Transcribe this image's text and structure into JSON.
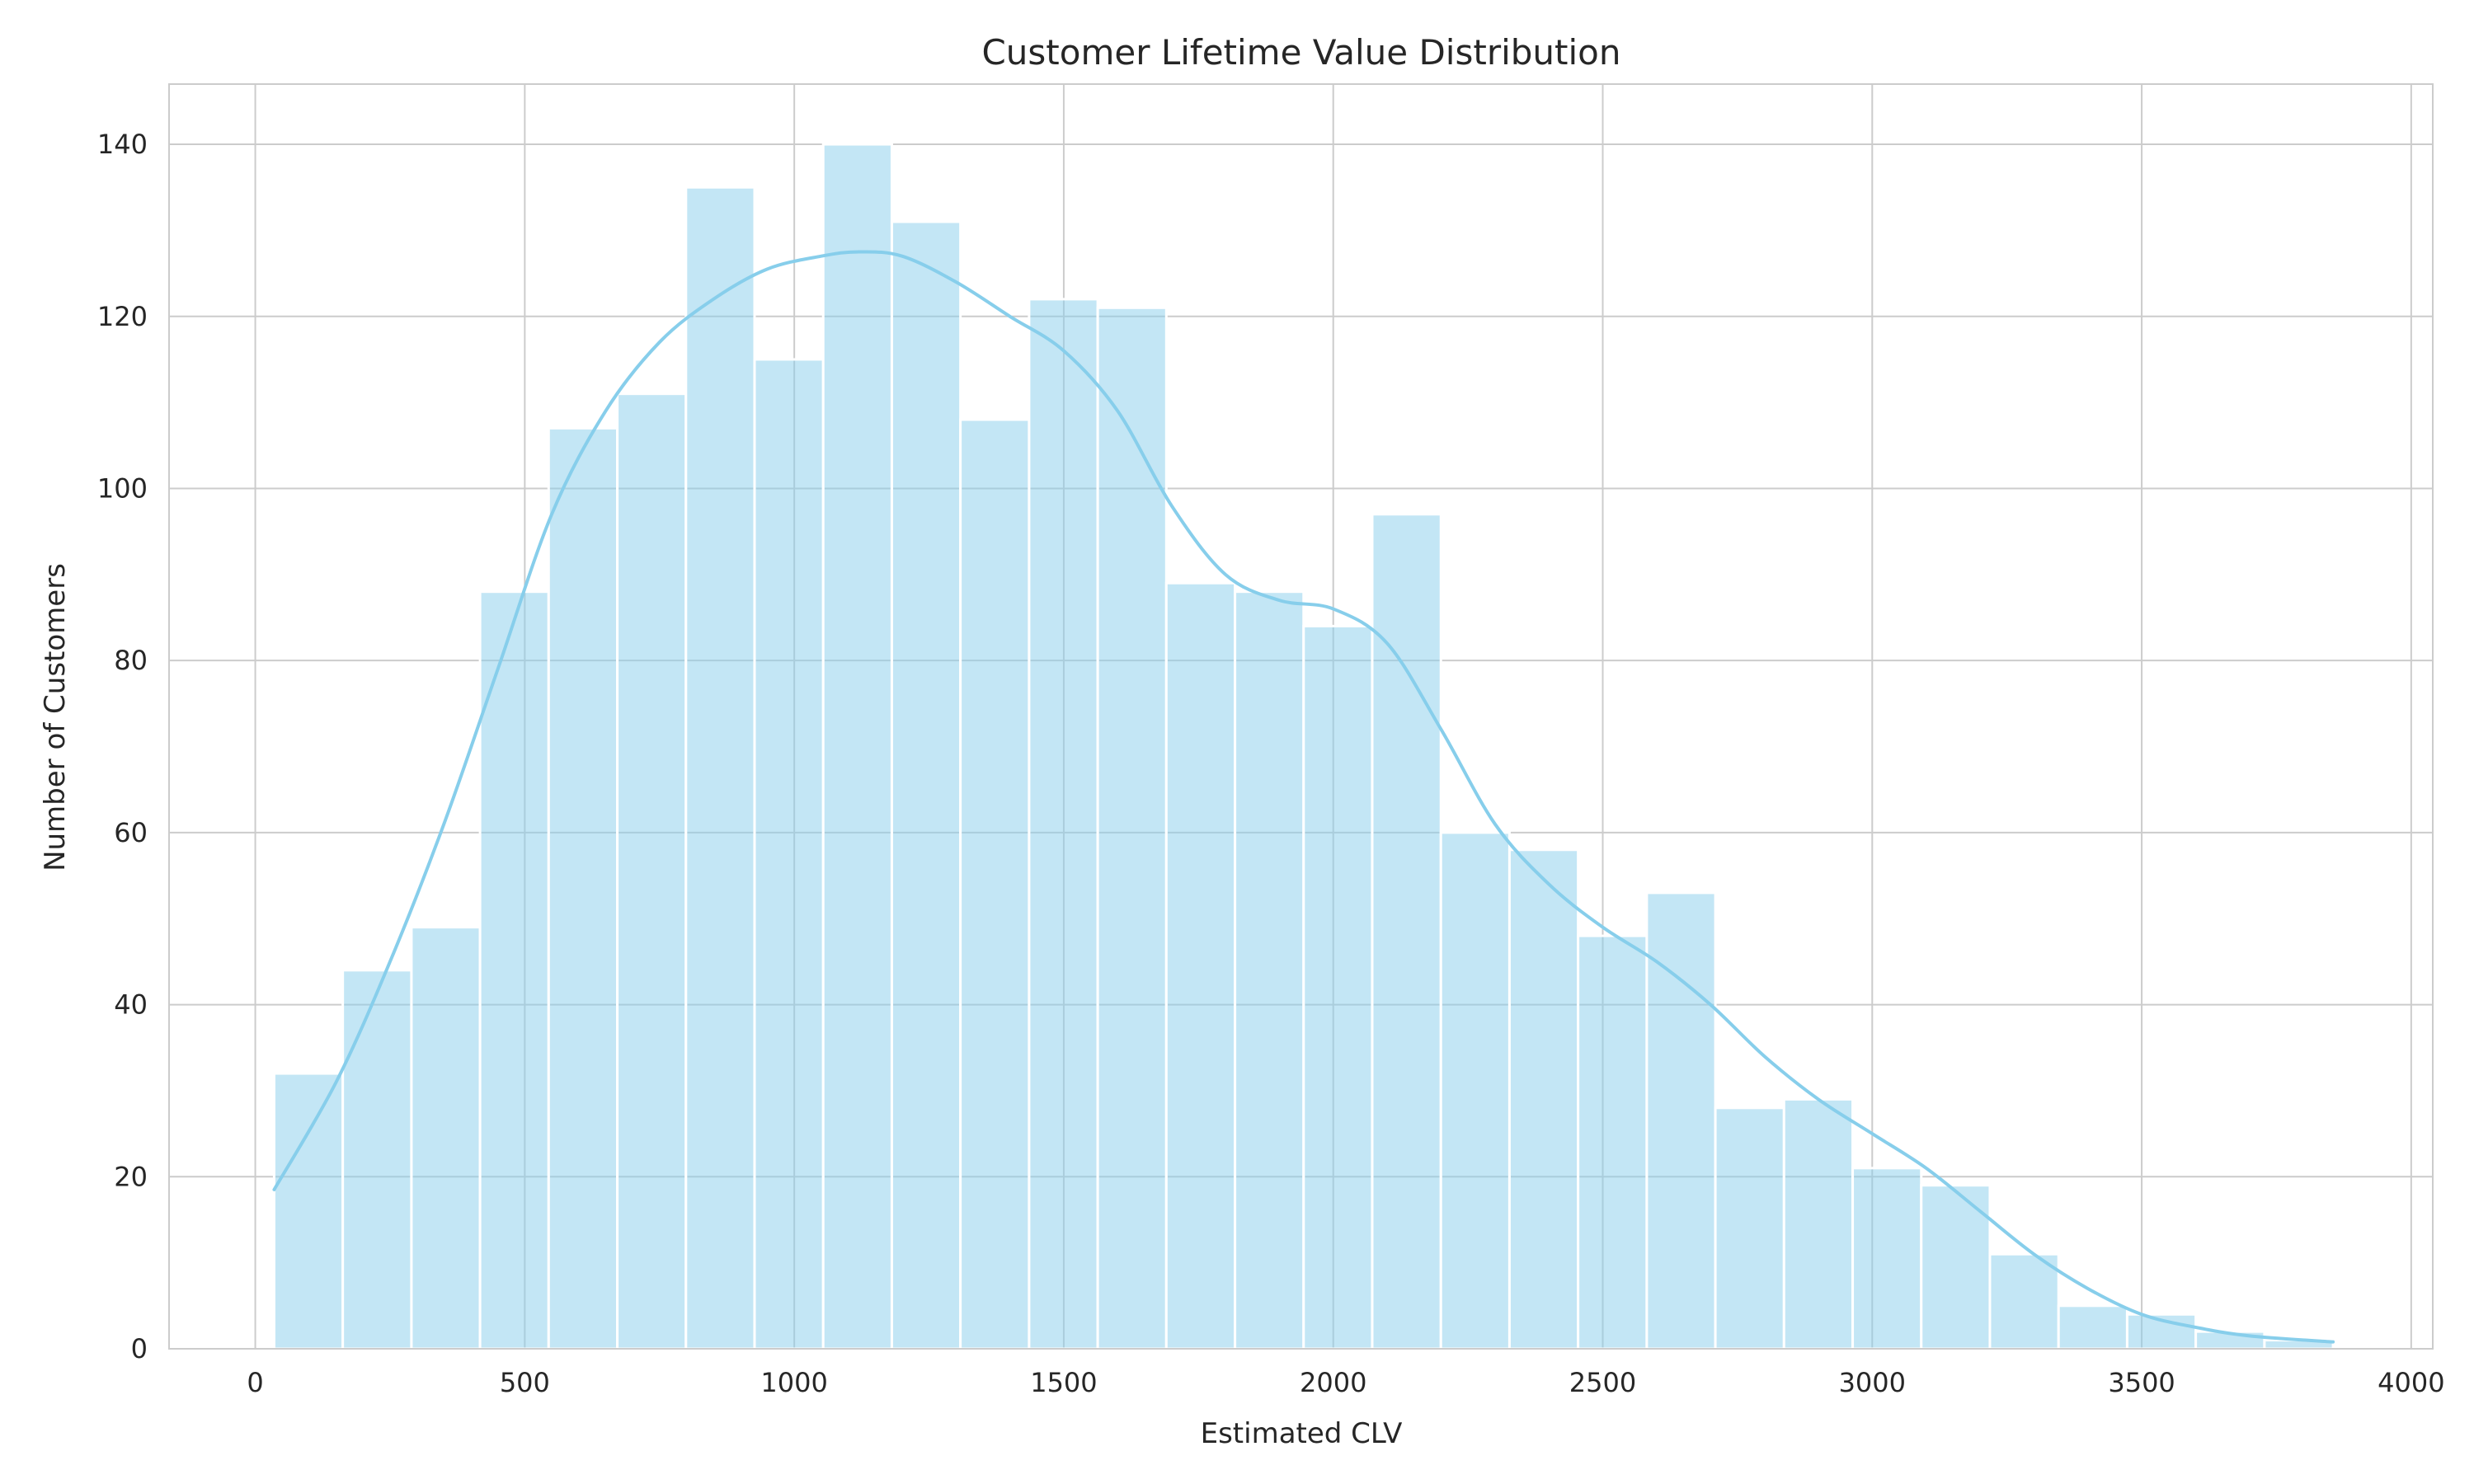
{
  "chart_data": {
    "type": "bar",
    "title": "Customer Lifetime Value Distribution",
    "xlabel": "Estimated CLV",
    "ylabel": "Number of Customers",
    "xlim": [
      -160,
      4040
    ],
    "ylim": [
      0,
      147
    ],
    "xticks": [
      0,
      500,
      1000,
      1500,
      2000,
      2500,
      3000,
      3500,
      4000
    ],
    "yticks": [
      0,
      20,
      40,
      60,
      80,
      100,
      120,
      140
    ],
    "grid": true,
    "bar_color": "#87ceeb",
    "kde_color": "#87ceeb",
    "bins": {
      "edges": [
        35,
        162.3,
        289.7,
        417,
        544.3,
        671.7,
        799,
        926.3,
        1053.7,
        1181,
        1308.3,
        1435.7,
        1563,
        1690.3,
        1817.7,
        1945,
        2072.3,
        2199.7,
        2327,
        2454.3,
        2581.7,
        2709,
        2836.3,
        2963.7,
        3091,
        3218.3,
        3345.7,
        3473,
        3600.3,
        3727.7,
        3855
      ],
      "counts": [
        32,
        44,
        49,
        88,
        107,
        111,
        135,
        115,
        140,
        131,
        108,
        122,
        121,
        89,
        88,
        84,
        97,
        60,
        58,
        48,
        53,
        28,
        29,
        21,
        19,
        11,
        5,
        4,
        2,
        1
      ]
    },
    "kde": {
      "x": [
        35,
        150,
        250,
        350,
        450,
        550,
        650,
        750,
        850,
        950,
        1050,
        1120,
        1200,
        1300,
        1400,
        1500,
        1600,
        1700,
        1800,
        1900,
        2000,
        2100,
        2200,
        2300,
        2400,
        2500,
        2600,
        2700,
        2800,
        2900,
        3000,
        3100,
        3200,
        3300,
        3400,
        3500,
        3600,
        3700,
        3855
      ],
      "y": [
        18.5,
        31,
        45,
        61,
        79,
        97,
        109,
        117,
        122,
        125.5,
        127,
        127.5,
        127,
        124,
        120,
        116,
        109,
        98,
        90,
        87,
        86,
        82,
        72,
        61,
        54,
        49,
        45,
        40,
        34,
        29,
        25,
        21,
        16,
        11,
        7,
        4,
        2.5,
        1.5,
        0.8
      ]
    }
  }
}
